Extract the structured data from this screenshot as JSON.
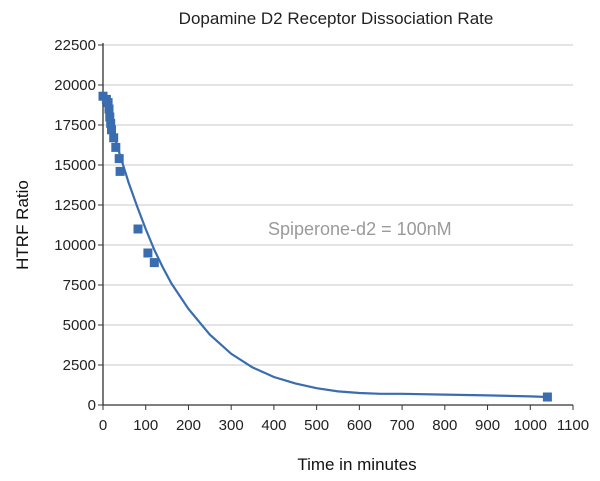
{
  "chart_data": {
    "type": "scatter",
    "title": "Dopamine D2 Receptor Dissociation Rate",
    "xlabel": "Time in minutes",
    "ylabel": "HTRF Ratio",
    "xlim": [
      0,
      1100
    ],
    "ylim": [
      0,
      22500
    ],
    "x_ticks": [
      0,
      100,
      200,
      300,
      400,
      500,
      600,
      700,
      800,
      900,
      1000,
      1100
    ],
    "y_ticks": [
      0,
      2500,
      5000,
      7500,
      10000,
      12500,
      15000,
      17500,
      20000,
      22500
    ],
    "grid": true,
    "annotation": "Spiperone-d2 = 100nM",
    "color": "#3a6db0",
    "series": [
      {
        "marker": "square",
        "x": [
          0,
          8,
          12,
          14,
          16,
          18,
          20,
          25,
          30,
          38,
          40,
          82,
          105,
          120,
          1040
        ],
        "y": [
          19300,
          19100,
          18900,
          18500,
          18000,
          17600,
          17200,
          16700,
          16100,
          15400,
          14600,
          11000,
          9500,
          8900,
          500
        ]
      }
    ],
    "fit_curve": {
      "x": [
        0,
        10,
        20,
        30,
        40,
        60,
        80,
        100,
        120,
        140,
        160,
        200,
        250,
        300,
        350,
        400,
        450,
        500,
        550,
        600,
        650,
        700,
        800,
        900,
        1000,
        1040
      ],
      "y": [
        19400,
        18500,
        17500,
        16500,
        15600,
        13900,
        12400,
        11000,
        9700,
        8600,
        7600,
        6000,
        4400,
        3200,
        2350,
        1750,
        1350,
        1050,
        850,
        750,
        700,
        700,
        650,
        600,
        540,
        500
      ]
    }
  }
}
